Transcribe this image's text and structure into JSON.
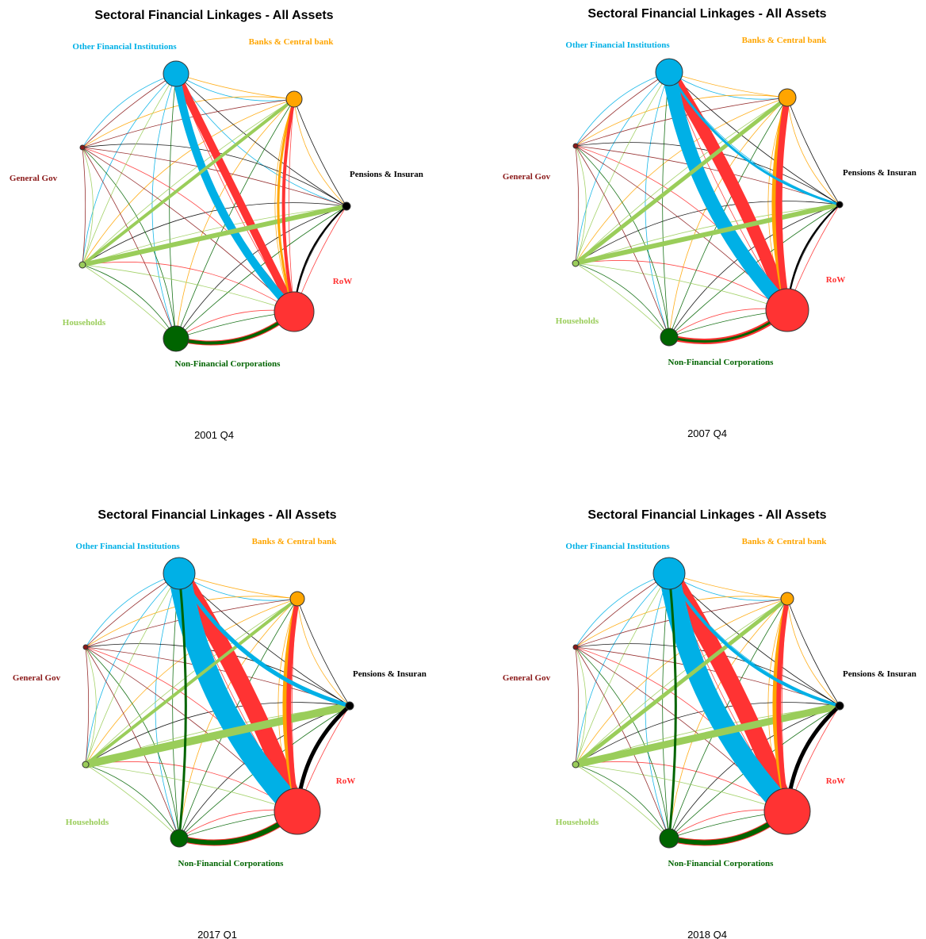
{
  "panels": [
    {
      "title": "Sectoral Financial Linkages - All Assets",
      "period": "2001 Q4",
      "nodes": [
        {
          "label": "Other Financial Institutions"
        },
        {
          "label": "Banks & Central bank"
        },
        {
          "label": "Pensions & Insuran"
        },
        {
          "label": "RoW"
        },
        {
          "label": "Non-Financial Corporations"
        },
        {
          "label": "Households"
        },
        {
          "label": "General Gov"
        }
      ]
    },
    {
      "title": "Sectoral Financial Linkages - All Assets",
      "period": "2007 Q4",
      "nodes": [
        {
          "label": "Other Financial Institutions"
        },
        {
          "label": "Banks & Central bank"
        },
        {
          "label": "Pensions & Insuran"
        },
        {
          "label": "RoW"
        },
        {
          "label": "Non-Financial Corporations"
        },
        {
          "label": "Households"
        },
        {
          "label": "General Gov"
        }
      ]
    },
    {
      "title": "Sectoral Financial Linkages - All Assets",
      "period": "2017 Q1",
      "nodes": [
        {
          "label": "Other Financial Institutions"
        },
        {
          "label": "Banks & Central bank"
        },
        {
          "label": "Pensions & Insuran"
        },
        {
          "label": "RoW"
        },
        {
          "label": "Non-Financial Corporations"
        },
        {
          "label": "Households"
        },
        {
          "label": "General Gov"
        }
      ]
    },
    {
      "title": "Sectoral Financial Linkages - All Assets",
      "period": "2018 Q4",
      "nodes": [
        {
          "label": "Other Financial Institutions"
        },
        {
          "label": "Banks & Central bank"
        },
        {
          "label": "Pensions & Insuran"
        },
        {
          "label": "RoW"
        },
        {
          "label": "Non-Financial Corporations"
        },
        {
          "label": "Households"
        },
        {
          "label": "General Gov"
        }
      ]
    }
  ]
}
